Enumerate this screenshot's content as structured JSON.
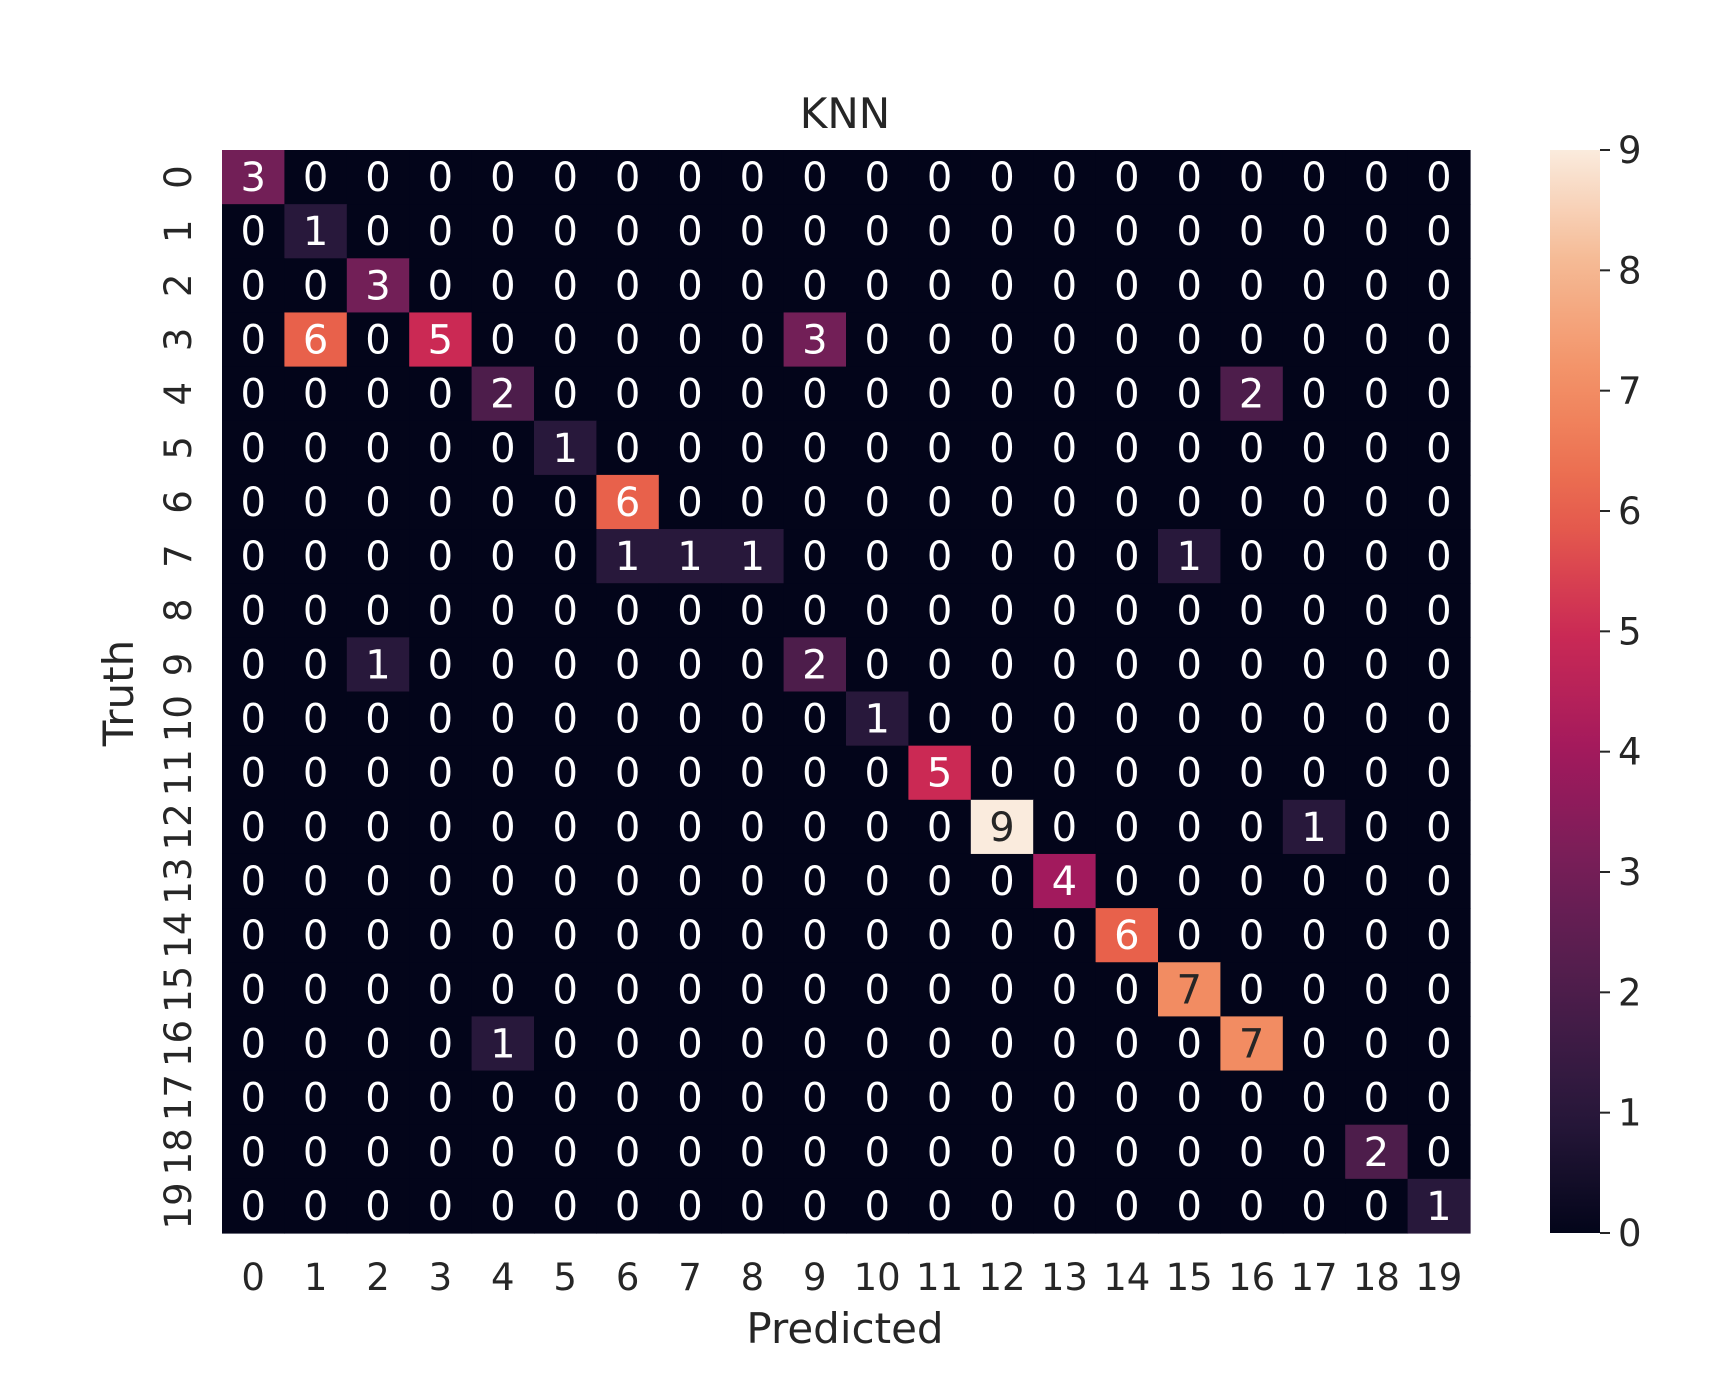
{
  "chart_data": {
    "type": "heatmap",
    "title": "KNN",
    "xlabel": "Predicted",
    "ylabel": "Truth",
    "x_categories": [
      "0",
      "1",
      "2",
      "3",
      "4",
      "5",
      "6",
      "7",
      "8",
      "9",
      "10",
      "11",
      "12",
      "13",
      "14",
      "15",
      "16",
      "17",
      "18",
      "19"
    ],
    "y_categories": [
      "0",
      "1",
      "2",
      "3",
      "4",
      "5",
      "6",
      "7",
      "8",
      "9",
      "10",
      "11",
      "12",
      "13",
      "14",
      "15",
      "16",
      "17",
      "18",
      "19"
    ],
    "matrix": [
      [
        3,
        0,
        0,
        0,
        0,
        0,
        0,
        0,
        0,
        0,
        0,
        0,
        0,
        0,
        0,
        0,
        0,
        0,
        0,
        0
      ],
      [
        0,
        1,
        0,
        0,
        0,
        0,
        0,
        0,
        0,
        0,
        0,
        0,
        0,
        0,
        0,
        0,
        0,
        0,
        0,
        0
      ],
      [
        0,
        0,
        3,
        0,
        0,
        0,
        0,
        0,
        0,
        0,
        0,
        0,
        0,
        0,
        0,
        0,
        0,
        0,
        0,
        0
      ],
      [
        0,
        6,
        0,
        5,
        0,
        0,
        0,
        0,
        0,
        3,
        0,
        0,
        0,
        0,
        0,
        0,
        0,
        0,
        0,
        0
      ],
      [
        0,
        0,
        0,
        0,
        2,
        0,
        0,
        0,
        0,
        0,
        0,
        0,
        0,
        0,
        0,
        0,
        2,
        0,
        0,
        0
      ],
      [
        0,
        0,
        0,
        0,
        0,
        1,
        0,
        0,
        0,
        0,
        0,
        0,
        0,
        0,
        0,
        0,
        0,
        0,
        0,
        0
      ],
      [
        0,
        0,
        0,
        0,
        0,
        0,
        6,
        0,
        0,
        0,
        0,
        0,
        0,
        0,
        0,
        0,
        0,
        0,
        0,
        0
      ],
      [
        0,
        0,
        0,
        0,
        0,
        0,
        1,
        1,
        1,
        0,
        0,
        0,
        0,
        0,
        0,
        1,
        0,
        0,
        0,
        0
      ],
      [
        0,
        0,
        0,
        0,
        0,
        0,
        0,
        0,
        0,
        0,
        0,
        0,
        0,
        0,
        0,
        0,
        0,
        0,
        0,
        0
      ],
      [
        0,
        0,
        1,
        0,
        0,
        0,
        0,
        0,
        0,
        2,
        0,
        0,
        0,
        0,
        0,
        0,
        0,
        0,
        0,
        0
      ],
      [
        0,
        0,
        0,
        0,
        0,
        0,
        0,
        0,
        0,
        0,
        1,
        0,
        0,
        0,
        0,
        0,
        0,
        0,
        0,
        0
      ],
      [
        0,
        0,
        0,
        0,
        0,
        0,
        0,
        0,
        0,
        0,
        0,
        5,
        0,
        0,
        0,
        0,
        0,
        0,
        0,
        0
      ],
      [
        0,
        0,
        0,
        0,
        0,
        0,
        0,
        0,
        0,
        0,
        0,
        0,
        9,
        0,
        0,
        0,
        0,
        1,
        0,
        0
      ],
      [
        0,
        0,
        0,
        0,
        0,
        0,
        0,
        0,
        0,
        0,
        0,
        0,
        0,
        4,
        0,
        0,
        0,
        0,
        0,
        0
      ],
      [
        0,
        0,
        0,
        0,
        0,
        0,
        0,
        0,
        0,
        0,
        0,
        0,
        0,
        0,
        6,
        0,
        0,
        0,
        0,
        0
      ],
      [
        0,
        0,
        0,
        0,
        0,
        0,
        0,
        0,
        0,
        0,
        0,
        0,
        0,
        0,
        0,
        7,
        0,
        0,
        0,
        0
      ],
      [
        0,
        0,
        0,
        0,
        1,
        0,
        0,
        0,
        0,
        0,
        0,
        0,
        0,
        0,
        0,
        0,
        7,
        0,
        0,
        0
      ],
      [
        0,
        0,
        0,
        0,
        0,
        0,
        0,
        0,
        0,
        0,
        0,
        0,
        0,
        0,
        0,
        0,
        0,
        0,
        0,
        0
      ],
      [
        0,
        0,
        0,
        0,
        0,
        0,
        0,
        0,
        0,
        0,
        0,
        0,
        0,
        0,
        0,
        0,
        0,
        0,
        2,
        0
      ],
      [
        0,
        0,
        0,
        0,
        0,
        0,
        0,
        0,
        0,
        0,
        0,
        0,
        0,
        0,
        0,
        0,
        0,
        0,
        0,
        1
      ]
    ],
    "colorbar": {
      "min": 0,
      "max": 9,
      "ticks": [
        0,
        1,
        2,
        3,
        4,
        5,
        6,
        7,
        8,
        9
      ],
      "colormap": "rocket"
    },
    "annotations": true,
    "grid": false
  }
}
